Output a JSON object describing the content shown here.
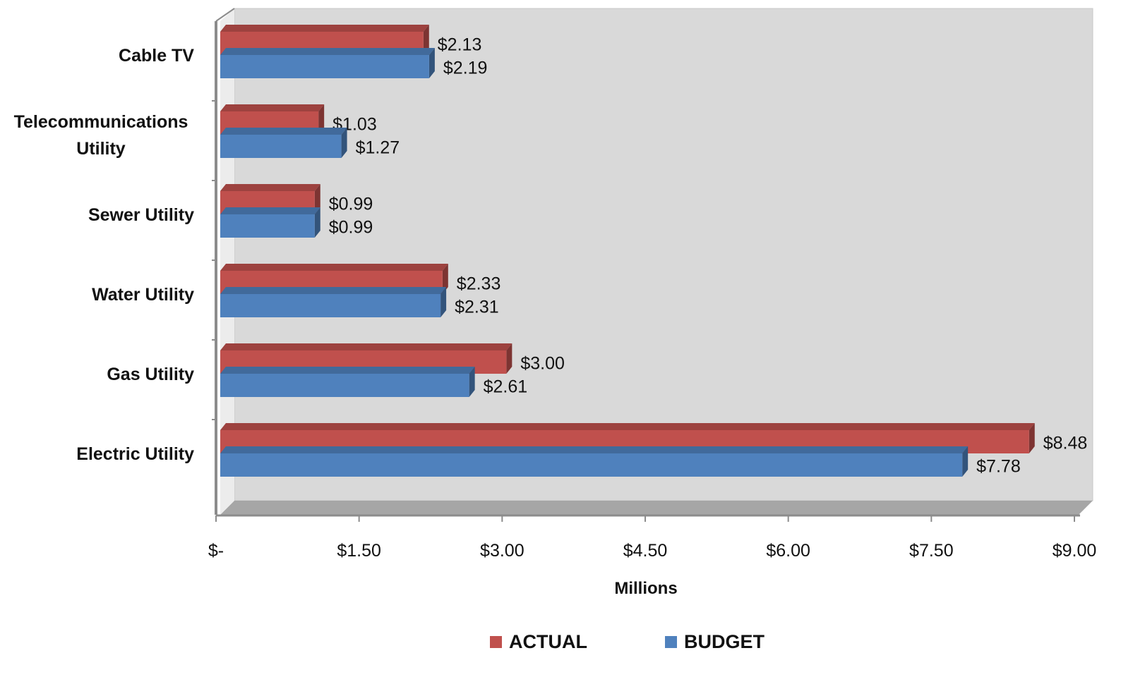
{
  "chart_data": {
    "type": "bar",
    "orientation": "horizontal",
    "categories": [
      "Cable TV",
      "Telecommunications Utility",
      "Sewer Utility",
      "Water Utility",
      "Gas Utility",
      "Electric Utility"
    ],
    "category_lines": [
      [
        "Cable TV"
      ],
      [
        "Telecommunications",
        "Utility"
      ],
      [
        "Sewer Utility"
      ],
      [
        "Water Utility"
      ],
      [
        "Gas Utility"
      ],
      [
        "Electric Utility"
      ]
    ],
    "series": [
      {
        "name": "ACTUAL",
        "color": "#c0504d",
        "values": [
          2.13,
          1.03,
          0.99,
          2.33,
          3.0,
          8.48
        ],
        "labels": [
          "$2.13",
          "$1.03",
          "$0.99",
          "$2.33",
          "$3.00",
          "$8.48"
        ]
      },
      {
        "name": "BUDGET",
        "color": "#4f81bd",
        "values": [
          2.19,
          1.27,
          0.99,
          2.31,
          2.61,
          7.78
        ],
        "labels": [
          "$2.19",
          "$1.27",
          "$0.99",
          "$2.31",
          "$2.61",
          "$7.78"
        ]
      }
    ],
    "xlabel": "Millions",
    "xlim": [
      0,
      9
    ],
    "xticks": [
      0,
      1.5,
      3,
      4.5,
      6,
      7.5,
      9
    ],
    "xtick_labels": [
      "$-",
      "$1.50",
      "$3.00",
      "$4.50",
      "$6.00",
      "$7.50",
      "$9.00"
    ],
    "legend_position": "bottom",
    "grid": false,
    "style": "3d",
    "plot_background": "#d9d9d9"
  }
}
